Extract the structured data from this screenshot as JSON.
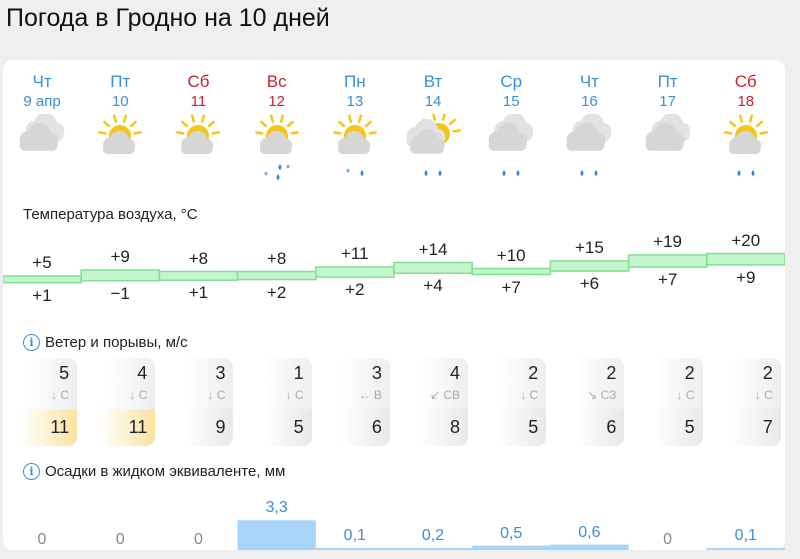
{
  "title": "Погода в Гродно на 10 дней",
  "days": [
    {
      "dow": "Чт",
      "date": "9 апр",
      "weekend": false,
      "icon": "cloudy-icon",
      "precip": "none",
      "high": "+5",
      "low": "+1",
      "high_v": 5,
      "low_v": 1,
      "wind": "5",
      "dir": "↓ С",
      "gust": "11",
      "gust_high": true,
      "rain": "0",
      "rain_v": 0
    },
    {
      "dow": "Пт",
      "date": "10",
      "weekend": false,
      "icon": "partly-cloudy-icon",
      "precip": "none",
      "high": "+9",
      "low": "−1",
      "high_v": 9,
      "low_v": -1,
      "wind": "4",
      "dir": "↓ С",
      "gust": "11",
      "gust_high": true,
      "rain": "0",
      "rain_v": 0
    },
    {
      "dow": "Сб",
      "date": "11",
      "weekend": true,
      "icon": "partly-cloudy-icon",
      "precip": "none",
      "high": "+8",
      "low": "+1",
      "high_v": 8,
      "low_v": 1,
      "wind": "3",
      "dir": "↓ С",
      "gust": "9",
      "gust_high": false,
      "rain": "0",
      "rain_v": 0
    },
    {
      "dow": "Вс",
      "date": "12",
      "weekend": true,
      "icon": "partly-cloudy-sleet-icon",
      "precip": "sleet",
      "high": "+8",
      "low": "+2",
      "high_v": 8,
      "low_v": 2,
      "wind": "1",
      "dir": "↓ С",
      "gust": "5",
      "gust_high": false,
      "rain": "3,3",
      "rain_v": 3.3
    },
    {
      "dow": "Пн",
      "date": "13",
      "weekend": false,
      "icon": "partly-cloudy-sleet-icon",
      "precip": "sleet-light",
      "high": "+11",
      "low": "+2",
      "high_v": 11,
      "low_v": 2,
      "wind": "3",
      "dir": "← В",
      "gust": "6",
      "gust_high": false,
      "rain": "0,1",
      "rain_v": 0.1
    },
    {
      "dow": "Вт",
      "date": "14",
      "weekend": false,
      "icon": "cloudy-sun-rain-icon",
      "precip": "rain",
      "high": "+14",
      "low": "+4",
      "high_v": 14,
      "low_v": 4,
      "wind": "4",
      "dir": "↙ СВ",
      "gust": "8",
      "gust_high": false,
      "rain": "0,2",
      "rain_v": 0.2
    },
    {
      "dow": "Ср",
      "date": "15",
      "weekend": false,
      "icon": "cloudy-rain-icon",
      "precip": "rain",
      "high": "+10",
      "low": "+7",
      "high_v": 10,
      "low_v": 7,
      "wind": "2",
      "dir": "↓ С",
      "gust": "5",
      "gust_high": false,
      "rain": "0,5",
      "rain_v": 0.5
    },
    {
      "dow": "Чт",
      "date": "16",
      "weekend": false,
      "icon": "cloudy-rain-icon",
      "precip": "rain",
      "high": "+15",
      "low": "+6",
      "high_v": 15,
      "low_v": 6,
      "wind": "2",
      "dir": "↘ СЗ",
      "gust": "6",
      "gust_high": false,
      "rain": "0,6",
      "rain_v": 0.6
    },
    {
      "dow": "Пт",
      "date": "17",
      "weekend": false,
      "icon": "cloudy-icon",
      "precip": "none",
      "high": "+19",
      "low": "+7",
      "high_v": 19,
      "low_v": 7,
      "wind": "2",
      "dir": "↓ С",
      "gust": "5",
      "gust_high": false,
      "rain": "0",
      "rain_v": 0
    },
    {
      "dow": "Сб",
      "date": "18",
      "weekend": true,
      "icon": "partly-cloudy-rain-icon",
      "precip": "rain",
      "high": "+20",
      "low": "+9",
      "high_v": 20,
      "low_v": 9,
      "wind": "2",
      "dir": "↓ С",
      "gust": "7",
      "gust_high": false,
      "rain": "0,1",
      "rain_v": 0.1
    }
  ],
  "sections": {
    "temp": "Температура воздуха, °C",
    "wind": "Ветер и порывы, м/с",
    "precip": "Осадки в жидком эквиваленте, мм"
  },
  "colors": {
    "weekday": "#3a8fd6",
    "weekend": "#c8232c",
    "sun": "#f5c518",
    "cloud": "#d6d6d6",
    "precip_fill": "#a8d4fa",
    "gust_high": "#fbe3a0"
  }
}
